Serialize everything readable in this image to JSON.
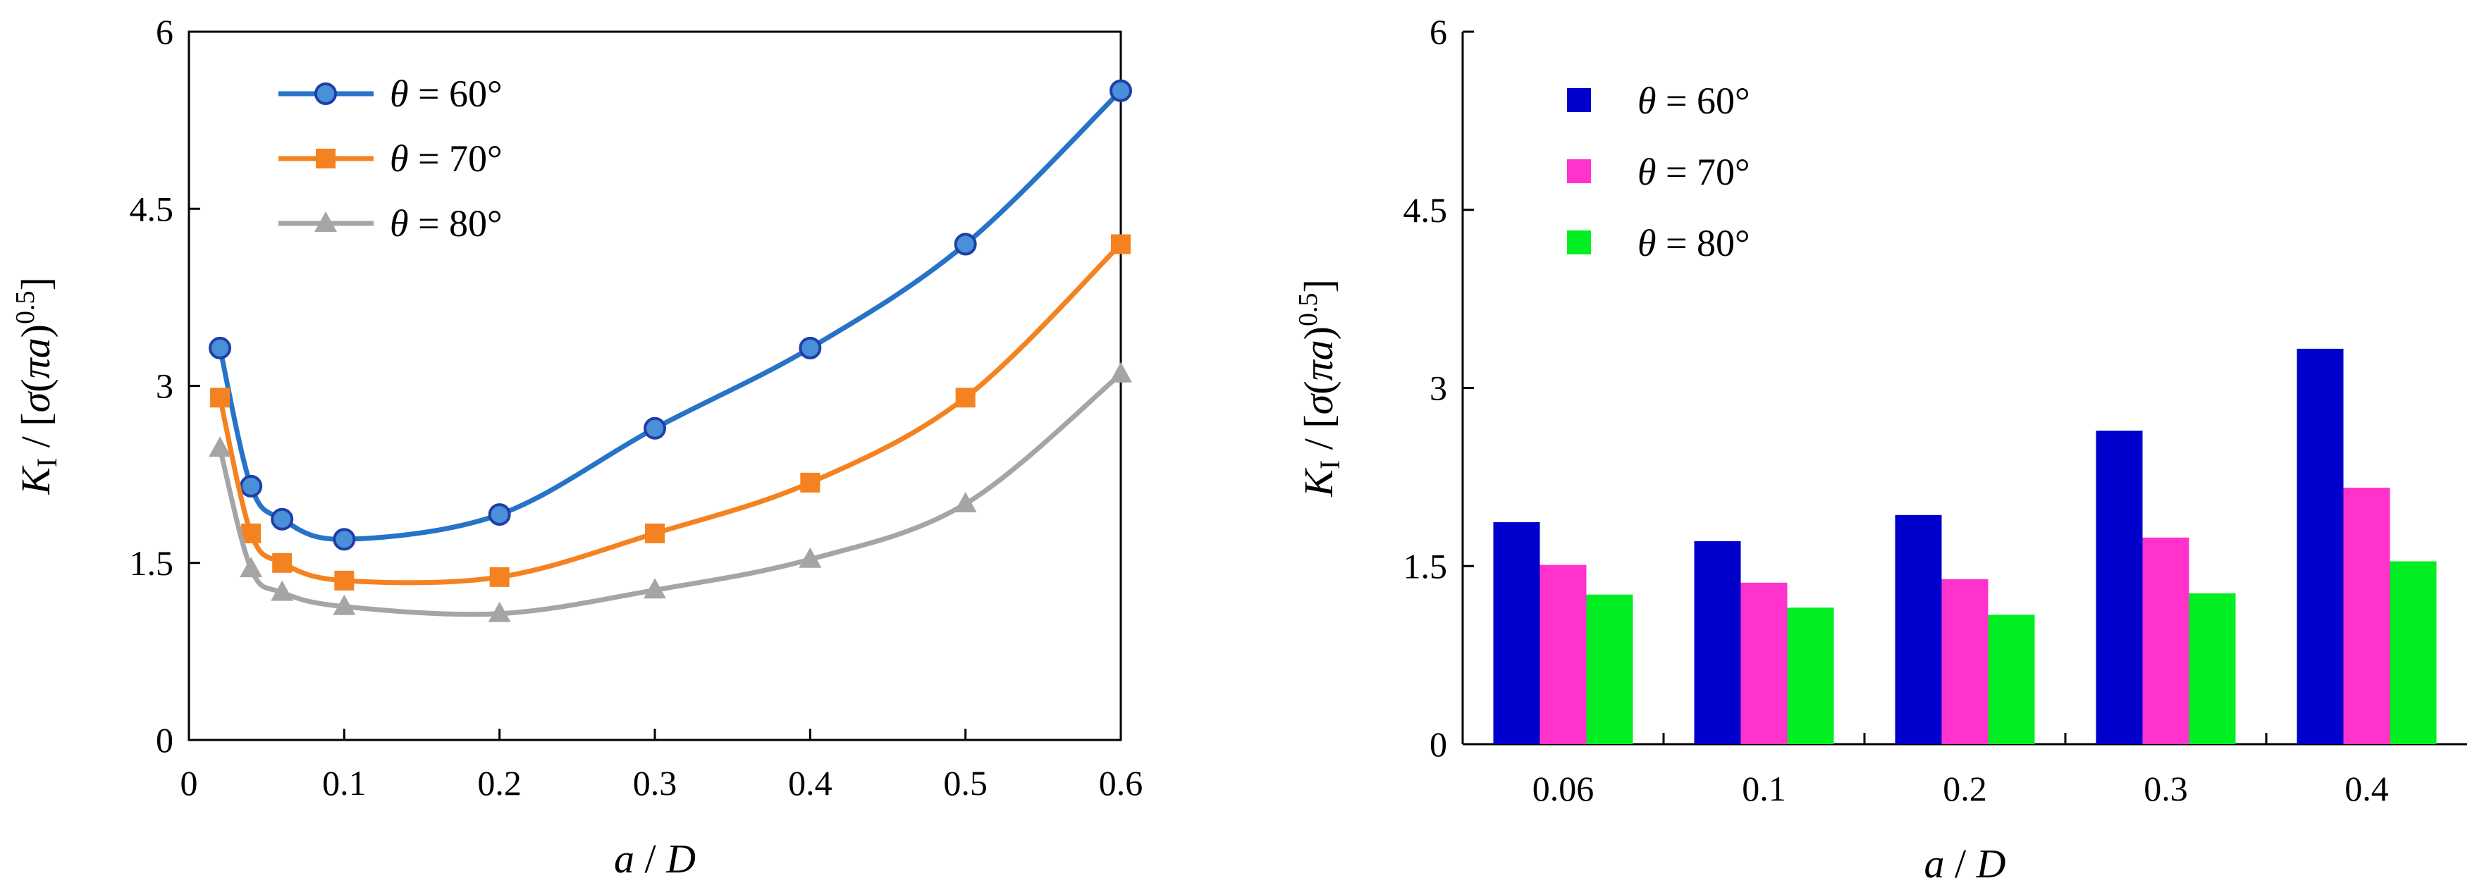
{
  "chart_data": [
    {
      "type": "line",
      "xlabel_parts": [
        "a",
        " / ",
        "D"
      ],
      "ylabel_parts": [
        "K",
        "I",
        " / [",
        "σ",
        "(",
        "π",
        "a",
        ")",
        "0.5",
        "]"
      ],
      "xlim": [
        0,
        0.6
      ],
      "ylim": [
        0,
        6
      ],
      "xticks": [
        "0",
        "0.1",
        "0.2",
        "0.3",
        "0.4",
        "0.5",
        "0.6"
      ],
      "yticks": [
        "0",
        "1.5",
        "3",
        "4.5",
        "6"
      ],
      "legend_position": "top-left",
      "x": [
        0.02,
        0.04,
        0.06,
        0.1,
        0.2,
        0.3,
        0.4,
        0.5,
        0.6
      ],
      "series": [
        {
          "name": "θ = 60°",
          "sym": "θ",
          "eq": " =  60°",
          "marker": "circle",
          "color": "#2673c8",
          "fill": "#4a90d8",
          "edge": "#1f3fa8",
          "values": [
            3.32,
            2.15,
            1.87,
            1.7,
            1.91,
            2.64,
            3.32,
            4.2,
            5.5
          ]
        },
        {
          "name": "θ = 70°",
          "sym": "θ",
          "eq": " =  70°",
          "marker": "square",
          "color": "#f58220",
          "fill": "#f58220",
          "edge": "#f58220",
          "values": [
            2.9,
            1.75,
            1.5,
            1.35,
            1.38,
            1.75,
            2.18,
            2.9,
            4.2
          ]
        },
        {
          "name": "θ = 80°",
          "sym": "θ",
          "eq": " =  80°",
          "marker": "triangle",
          "color": "#a5a5a5",
          "fill": "#a5a5a5",
          "edge": "#a5a5a5",
          "values": [
            2.47,
            1.45,
            1.25,
            1.13,
            1.07,
            1.27,
            1.53,
            2.0,
            3.1
          ]
        }
      ]
    },
    {
      "type": "bar",
      "xlabel_parts": [
        "a",
        " / ",
        "D"
      ],
      "ylabel_parts": [
        "K",
        "I",
        " / [",
        "σ",
        "(",
        "π",
        "a",
        ")",
        "0.5",
        "]"
      ],
      "categories": [
        "0.06",
        "0.1",
        "0.2",
        "0.3",
        "0.4"
      ],
      "ylim": [
        0,
        6
      ],
      "yticks": [
        "0",
        "1.5",
        "3",
        "4.5",
        "6"
      ],
      "legend_position": "top-left",
      "series": [
        {
          "name": "θ = 60°",
          "sym": "θ",
          "eq": " = 60°",
          "color": "#0000cc",
          "values": [
            1.87,
            1.71,
            1.93,
            2.64,
            3.33
          ]
        },
        {
          "name": "θ = 70°",
          "sym": "θ",
          "eq": " = 70°",
          "color": "#ff33cc",
          "values": [
            1.51,
            1.36,
            1.39,
            1.74,
            2.16
          ]
        },
        {
          "name": "θ = 80°",
          "sym": "θ",
          "eq": " = 80°",
          "color": "#00ee22",
          "values": [
            1.26,
            1.15,
            1.09,
            1.27,
            1.54
          ]
        }
      ]
    }
  ]
}
